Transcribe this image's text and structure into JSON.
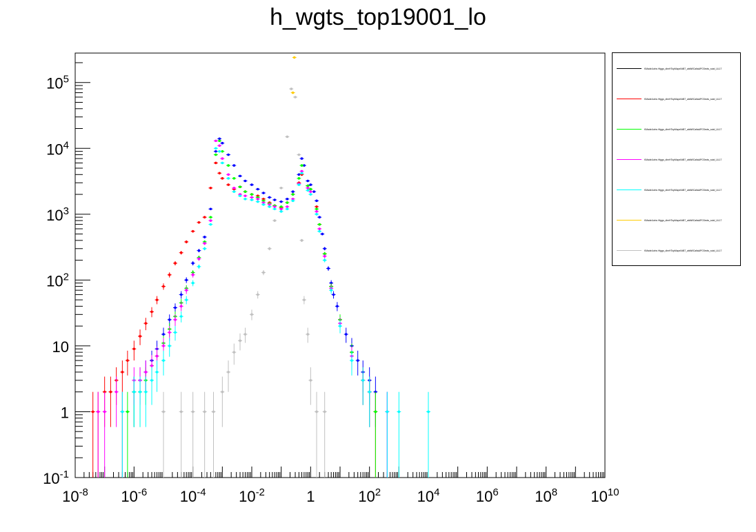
{
  "title": "h_wgts_top19001_lo",
  "chart_data": {
    "type": "scatter",
    "title": "h_wgts_top19001_lo",
    "xlabel": "",
    "ylabel": "",
    "x_scale": "log",
    "y_scale": "log",
    "xlim": [
      1e-08,
      10000000000.0
    ],
    "ylim": [
      0.1,
      280000
    ],
    "x_ticks": [
      {
        "label": "10",
        "exp": "-8",
        "value": 1e-08
      },
      {
        "label": "10",
        "exp": "-6",
        "value": 1e-06
      },
      {
        "label": "10",
        "exp": "-4",
        "value": 0.0001
      },
      {
        "label": "10",
        "exp": "-2",
        "value": 0.01
      },
      {
        "label": "1",
        "exp": "",
        "value": 1
      },
      {
        "label": "10",
        "exp": "2",
        "value": 100
      },
      {
        "label": "10",
        "exp": "4",
        "value": 10000
      },
      {
        "label": "10",
        "exp": "6",
        "value": 1000000.0
      },
      {
        "label": "10",
        "exp": "8",
        "value": 100000000.0
      },
      {
        "label": "10",
        "exp": "10",
        "value": 10000000000.0
      }
    ],
    "y_ticks": [
      {
        "label": "10",
        "exp": "-1",
        "value": 0.1
      },
      {
        "label": "1",
        "exp": "",
        "value": 1
      },
      {
        "label": "10",
        "exp": "",
        "value": 10
      },
      {
        "label": "10",
        "exp": "2",
        "value": 100
      },
      {
        "label": "10",
        "exp": "3",
        "value": 1000
      },
      {
        "label": "10",
        "exp": "4",
        "value": 10000
      },
      {
        "label": "10",
        "exp": "5",
        "value": 100000
      }
    ],
    "series": [
      {
        "color": "#0000ff",
        "points": [
          [
            1e-06,
            2
          ],
          [
            1.6e-06,
            3
          ],
          [
            2.5e-06,
            4
          ],
          [
            4e-06,
            6
          ],
          [
            6e-06,
            9
          ],
          [
            1e-05,
            15
          ],
          [
            1.6e-05,
            25
          ],
          [
            2.5e-05,
            38
          ],
          [
            4e-05,
            60
          ],
          [
            6e-05,
            100
          ],
          [
            0.0001,
            180
          ],
          [
            0.00016,
            280
          ],
          [
            0.00025,
            450
          ],
          [
            0.0004,
            1200
          ],
          [
            0.0006,
            9000
          ],
          [
            0.0008,
            14000
          ],
          [
            0.001,
            12000
          ],
          [
            0.0016,
            8000
          ],
          [
            0.0025,
            5500
          ],
          [
            0.004,
            3800
          ],
          [
            0.006,
            3200
          ],
          [
            0.01,
            2800
          ],
          [
            0.016,
            2400
          ],
          [
            0.025,
            2100
          ],
          [
            0.04,
            1800
          ],
          [
            0.06,
            1650
          ],
          [
            0.1,
            1550
          ],
          [
            0.16,
            1700
          ],
          [
            0.25,
            2200
          ],
          [
            0.4,
            4000
          ],
          [
            0.5,
            7000
          ],
          [
            0.6,
            5500
          ],
          [
            0.8,
            3200
          ],
          [
            1,
            2800
          ],
          [
            1.3,
            2200
          ],
          [
            1.6,
            1600
          ],
          [
            2,
            900
          ],
          [
            2.5,
            500
          ],
          [
            3,
            300
          ],
          [
            4,
            150
          ],
          [
            5,
            90
          ],
          [
            6,
            60
          ],
          [
            8,
            40
          ],
          [
            10,
            25
          ],
          [
            16,
            15
          ],
          [
            25,
            10
          ],
          [
            40,
            6
          ],
          [
            60,
            4
          ],
          [
            100,
            3
          ],
          [
            160,
            2
          ],
          [
            400,
            1
          ]
        ]
      },
      {
        "color": "#ff0000",
        "points": [
          [
            4e-08,
            1
          ],
          [
            6e-08,
            1
          ],
          [
            1e-07,
            2
          ],
          [
            1.6e-07,
            2
          ],
          [
            2.5e-07,
            3
          ],
          [
            4e-07,
            4
          ],
          [
            6e-07,
            6
          ],
          [
            1e-06,
            9
          ],
          [
            1.6e-06,
            14
          ],
          [
            2.5e-06,
            22
          ],
          [
            4e-06,
            33
          ],
          [
            6e-06,
            50
          ],
          [
            1e-05,
            80
          ],
          [
            1.6e-05,
            120
          ],
          [
            2.5e-05,
            180
          ],
          [
            4e-05,
            260
          ],
          [
            6e-05,
            380
          ],
          [
            0.0001,
            550
          ],
          [
            0.00016,
            750
          ],
          [
            0.00025,
            900
          ],
          [
            0.0004,
            2500
          ],
          [
            0.0006,
            6000
          ],
          [
            0.0008,
            4200
          ],
          [
            0.001,
            3500
          ],
          [
            0.0016,
            2800
          ],
          [
            0.0025,
            2400
          ],
          [
            0.004,
            2600
          ],
          [
            0.006,
            2200
          ],
          [
            0.01,
            2000
          ],
          [
            0.016,
            1900
          ],
          [
            0.025,
            1700
          ],
          [
            0.04,
            1500
          ],
          [
            0.06,
            1350
          ],
          [
            0.1,
            1250
          ],
          [
            0.16,
            1500
          ],
          [
            0.25,
            2000
          ],
          [
            0.4,
            3000
          ],
          [
            0.5,
            4000
          ],
          [
            0.8,
            2700
          ],
          [
            1,
            2400
          ],
          [
            1.6,
            1300
          ],
          [
            2,
            700
          ],
          [
            3,
            250
          ],
          [
            5,
            80
          ],
          [
            10,
            25
          ],
          [
            25,
            8
          ],
          [
            60,
            3
          ],
          [
            100,
            2
          ],
          [
            160,
            1
          ]
        ]
      },
      {
        "color": "#00ff00",
        "points": [
          [
            4e-07,
            1
          ],
          [
            6e-07,
            1
          ],
          [
            1e-06,
            2
          ],
          [
            1.6e-06,
            2
          ],
          [
            2.5e-06,
            3
          ],
          [
            4e-06,
            5
          ],
          [
            6e-06,
            7
          ],
          [
            1e-05,
            11
          ],
          [
            1.6e-05,
            18
          ],
          [
            2.5e-05,
            28
          ],
          [
            4e-05,
            45
          ],
          [
            6e-05,
            75
          ],
          [
            0.0001,
            130
          ],
          [
            0.00016,
            220
          ],
          [
            0.00025,
            380
          ],
          [
            0.0004,
            900
          ],
          [
            0.0006,
            8000
          ],
          [
            0.0008,
            13000
          ],
          [
            0.001,
            9000
          ],
          [
            0.0016,
            5500
          ],
          [
            0.0025,
            3500
          ],
          [
            0.004,
            2600
          ],
          [
            0.006,
            2200
          ],
          [
            0.01,
            2000
          ],
          [
            0.016,
            1800
          ],
          [
            0.025,
            1600
          ],
          [
            0.04,
            1450
          ],
          [
            0.06,
            1350
          ],
          [
            0.1,
            1300
          ],
          [
            0.16,
            1500
          ],
          [
            0.25,
            2000
          ],
          [
            0.4,
            3500
          ],
          [
            0.5,
            5500
          ],
          [
            0.8,
            2700
          ],
          [
            1,
            2400
          ],
          [
            1.6,
            1200
          ],
          [
            2,
            700
          ],
          [
            3,
            250
          ],
          [
            5,
            80
          ],
          [
            10,
            25
          ],
          [
            25,
            8
          ],
          [
            60,
            3
          ],
          [
            100,
            2
          ],
          [
            160,
            1
          ]
        ]
      },
      {
        "color": "#ff00ff",
        "points": [
          [
            6e-08,
            1
          ],
          [
            1e-07,
            1
          ],
          [
            2.5e-07,
            2
          ],
          [
            4e-07,
            1
          ],
          [
            1e-06,
            3
          ],
          [
            1.6e-06,
            3
          ],
          [
            2.5e-06,
            4
          ],
          [
            4e-06,
            5
          ],
          [
            6e-06,
            7
          ],
          [
            1e-05,
            10
          ],
          [
            1.6e-05,
            16
          ],
          [
            2.5e-05,
            25
          ],
          [
            4e-05,
            40
          ],
          [
            6e-05,
            70
          ],
          [
            0.0001,
            120
          ],
          [
            0.00016,
            210
          ],
          [
            0.00025,
            360
          ],
          [
            0.0004,
            800
          ],
          [
            0.0006,
            13000
          ],
          [
            0.0008,
            11000
          ],
          [
            0.001,
            7000
          ],
          [
            0.0016,
            4000
          ],
          [
            0.0025,
            2500
          ],
          [
            0.004,
            2000
          ],
          [
            0.006,
            1900
          ],
          [
            0.01,
            1800
          ],
          [
            0.016,
            1700
          ],
          [
            0.025,
            1500
          ],
          [
            0.04,
            1400
          ],
          [
            0.06,
            1300
          ],
          [
            0.1,
            1200
          ],
          [
            0.16,
            1300
          ],
          [
            0.25,
            1700
          ],
          [
            0.4,
            2900
          ],
          [
            0.5,
            4500
          ],
          [
            0.8,
            2500
          ],
          [
            1,
            2200
          ],
          [
            1.6,
            1100
          ],
          [
            2,
            600
          ],
          [
            3,
            230
          ],
          [
            5,
            75
          ],
          [
            10,
            22
          ],
          [
            25,
            7
          ],
          [
            60,
            3
          ],
          [
            100,
            2
          ],
          [
            400,
            1
          ]
        ]
      },
      {
        "color": "#00ffff",
        "points": [
          [
            4e-07,
            1
          ],
          [
            1e-06,
            2
          ],
          [
            1.6e-06,
            2
          ],
          [
            2.5e-06,
            2
          ],
          [
            4e-06,
            3
          ],
          [
            6e-06,
            4
          ],
          [
            1e-05,
            6
          ],
          [
            1.6e-05,
            10
          ],
          [
            2.5e-05,
            16
          ],
          [
            4e-05,
            28
          ],
          [
            6e-05,
            50
          ],
          [
            0.0001,
            90
          ],
          [
            0.00016,
            160
          ],
          [
            0.00025,
            300
          ],
          [
            0.0004,
            700
          ],
          [
            0.0006,
            10000
          ],
          [
            0.0008,
            9000
          ],
          [
            0.001,
            6000
          ],
          [
            0.0016,
            3500
          ],
          [
            0.0025,
            2200
          ],
          [
            0.004,
            1900
          ],
          [
            0.006,
            1700
          ],
          [
            0.01,
            1650
          ],
          [
            0.016,
            1550
          ],
          [
            0.025,
            1400
          ],
          [
            0.04,
            1300
          ],
          [
            0.06,
            1200
          ],
          [
            0.1,
            1100
          ],
          [
            0.16,
            1200
          ],
          [
            0.25,
            1600
          ],
          [
            0.4,
            2800
          ],
          [
            0.5,
            4200
          ],
          [
            0.8,
            2300
          ],
          [
            1,
            2000
          ],
          [
            1.6,
            1000
          ],
          [
            2,
            550
          ],
          [
            3,
            200
          ],
          [
            5,
            70
          ],
          [
            10,
            20
          ],
          [
            25,
            6
          ],
          [
            60,
            3
          ],
          [
            100,
            2
          ],
          [
            400,
            1
          ],
          [
            1000,
            1
          ],
          [
            10000,
            1
          ]
        ]
      },
      {
        "color": "#ffcc00",
        "points": [
          [
            0.25,
            70000
          ],
          [
            0.28,
            240000
          ]
        ]
      },
      {
        "color": "#c0c0c0",
        "points": [
          [
            1e-05,
            1
          ],
          [
            4e-05,
            1
          ],
          [
            0.0001,
            1
          ],
          [
            0.00025,
            1
          ],
          [
            0.0005,
            1
          ],
          [
            0.001,
            2
          ],
          [
            0.0016,
            4
          ],
          [
            0.0025,
            8
          ],
          [
            0.004,
            12
          ],
          [
            0.006,
            15
          ],
          [
            0.01,
            30
          ],
          [
            0.016,
            60
          ],
          [
            0.025,
            130
          ],
          [
            0.04,
            300
          ],
          [
            0.06,
            800
          ],
          [
            0.1,
            2500
          ],
          [
            0.16,
            15000
          ],
          [
            0.22,
            80000
          ],
          [
            0.3,
            60000
          ],
          [
            0.4,
            8000
          ],
          [
            0.5,
            400
          ],
          [
            0.6,
            50
          ],
          [
            0.8,
            15
          ],
          [
            1,
            3
          ],
          [
            1.6,
            1
          ],
          [
            3,
            1
          ]
        ]
      }
    ]
  },
  "legend": {
    "entries": [
      {
        "color": "#000000",
        "label": "KMadeJurbs Higgs_dimHTopMapx0dB7_attdWCaltaAPO3ects_sutd_UL17"
      },
      {
        "color": "#ff0000",
        "label": "KMadeJurbs Higgs_dimHTopMapx0dB7_attdWCaltaAPO3ects_sutd_UL17"
      },
      {
        "color": "#00ff00",
        "label": "KMadeJurbs Higgs_dimHTopMapx0dB7_attdWCaltaAPO3ects_sutd_UL17"
      },
      {
        "color": "#ff00ff",
        "label": "KMadeJurbs Higgs_dimHTopMapx0dB7_attdWCaltaAPO3ects_sutd_UL17"
      },
      {
        "color": "#00ffff",
        "label": "KMadeJurbs Higgs_dimHTopMapx0dB7_attdWCaltaAPO3ects_sutd_UL17"
      },
      {
        "color": "#ffcc00",
        "label": "KMadeJurbs Higgs_dimHTopMapx0dB7_attdWCaltaAPO3ects_sutd_UL17"
      },
      {
        "color": "#c0c0c0",
        "label": "KMadeJurbs Higgs_dimHTopMapx0dB7_attdWCaltaAPO3ects_sutd_UL17"
      }
    ]
  }
}
